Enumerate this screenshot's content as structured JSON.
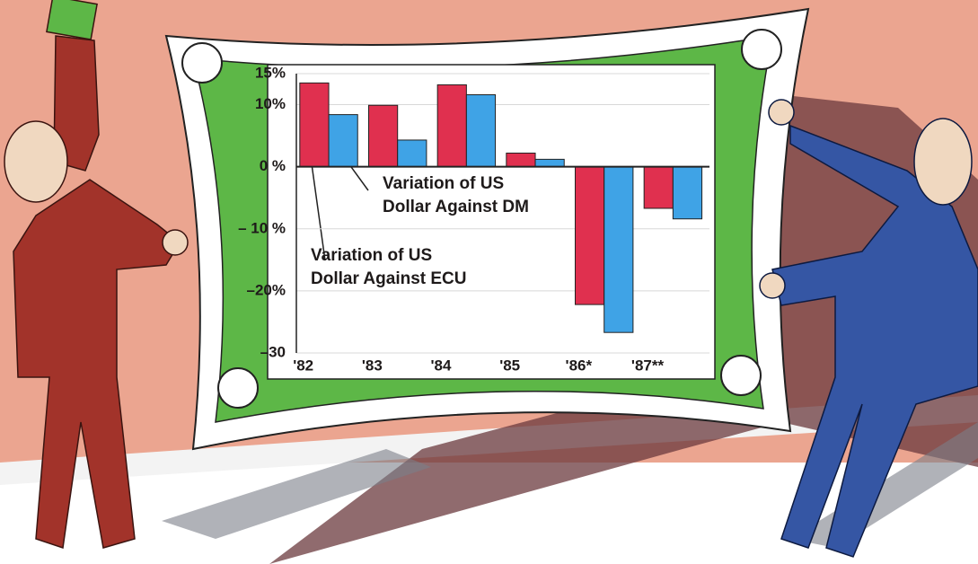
{
  "chart_data": {
    "type": "bar",
    "categories": [
      "'82",
      "'83",
      "'84",
      "'85",
      "'86*",
      "'87**"
    ],
    "series": [
      {
        "name": "Variation of US Dollar Against ECU",
        "color": "#e0304f",
        "values": [
          13.5,
          9.9,
          13.2,
          2.2,
          -22.2,
          -6.7
        ]
      },
      {
        "name": "Variation of US Dollar Against DM",
        "color": "#3fa3e6",
        "values": [
          8.4,
          4.3,
          11.6,
          1.2,
          -26.7,
          -8.4
        ]
      }
    ],
    "ylim": [
      -30,
      15
    ],
    "yticks": [
      {
        "value": -30,
        "label": "–30"
      },
      {
        "value": -20,
        "label": "–20%"
      },
      {
        "value": -10,
        "label": "– 10 %"
      },
      {
        "value": 0,
        "label": "0 %"
      },
      {
        "value": 10,
        "label": "10%"
      },
      {
        "value": 15,
        "label": "15%"
      }
    ],
    "grid": true
  }
}
